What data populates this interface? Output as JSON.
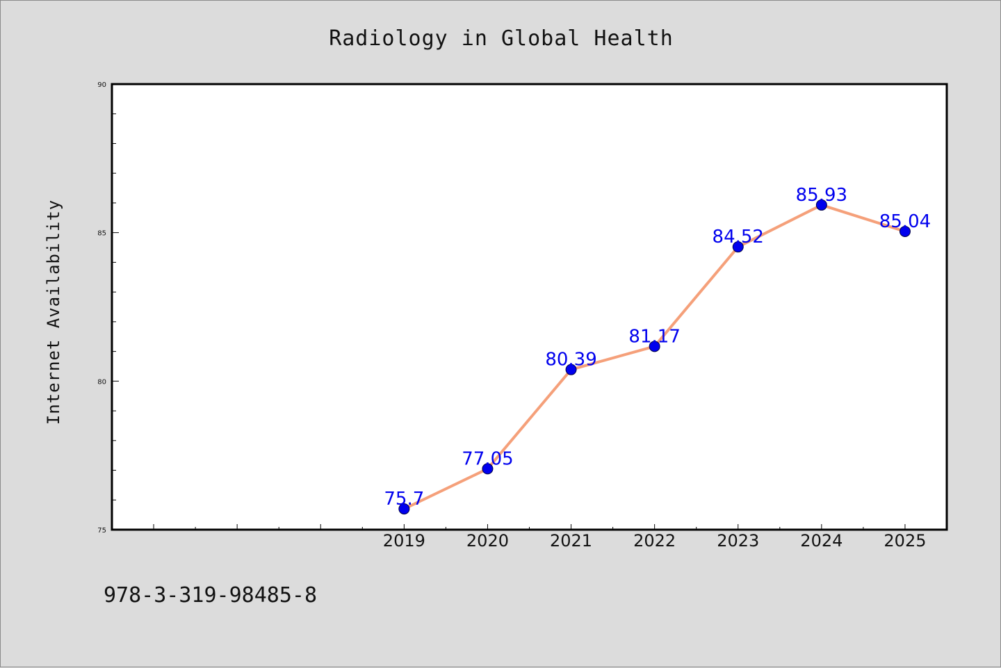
{
  "footer_text": "978-3-319-98485-8",
  "colors": {
    "background": "#dcdcdc",
    "plot_background": "#ffffff",
    "line": "#f5a07a",
    "marker": "#0000ee",
    "data_label": "#0000ee"
  },
  "chart_data": {
    "type": "line",
    "title": "Radiology in Global Health",
    "xlabel": "",
    "ylabel": "Internet Availability",
    "x": [
      "2019",
      "2020",
      "2021",
      "2022",
      "2023",
      "2024",
      "2025"
    ],
    "values": [
      75.7,
      77.05,
      80.39,
      81.17,
      84.52,
      85.93,
      85.04
    ],
    "data_labels": [
      "75.7",
      "77.05",
      "80.39",
      "81.17",
      "84.52",
      "85.93",
      "85.04"
    ],
    "xlim": [
      2015.5,
      2025.5
    ],
    "ylim": [
      75,
      90
    ],
    "yticks": [
      "75",
      "80",
      "85",
      "90"
    ],
    "grid": false,
    "legend": "none"
  }
}
